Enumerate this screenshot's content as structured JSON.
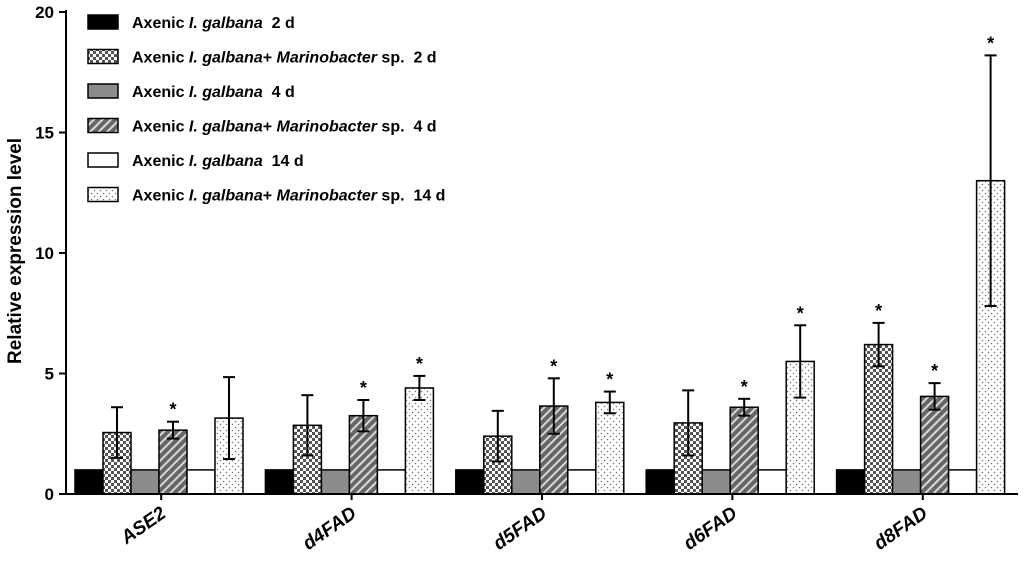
{
  "chart_data": {
    "type": "bar",
    "title": "",
    "xlabel": "",
    "ylabel": "Relative expression level",
    "ylim": [
      0,
      20
    ],
    "yticks": [
      "0",
      "5",
      "10",
      "15",
      "20"
    ],
    "grid": false,
    "legend_position": "top-left",
    "categories": [
      "ASE2",
      "d4FAD",
      "d5FAD",
      "d6FAD",
      "d8FAD"
    ],
    "significance_marker": "*",
    "series": [
      {
        "name": "Axenic I. galbana 2 d",
        "legend_parts": [
          {
            "t": "Axenic ",
            "i": false
          },
          {
            "t": "I. galbana",
            "i": true
          },
          {
            "t": "  2 d",
            "i": false
          }
        ],
        "pattern": "solid-black",
        "values": [
          1,
          1,
          1,
          1,
          1
        ],
        "errors": [
          0,
          0,
          0,
          0,
          0
        ],
        "significant": [
          false,
          false,
          false,
          false,
          false
        ]
      },
      {
        "name": "Axenic I. galbana+ Marinobacter sp. 2 d",
        "legend_parts": [
          {
            "t": "Axenic ",
            "i": false
          },
          {
            "t": "I. galbana",
            "i": true
          },
          {
            "t": "+ ",
            "i": false
          },
          {
            "t": "Marinobacter",
            "i": true
          },
          {
            "t": " sp.  2 d",
            "i": false
          }
        ],
        "pattern": "checker",
        "values": [
          2.55,
          2.85,
          2.4,
          2.95,
          6.2
        ],
        "errors": [
          1.05,
          1.25,
          1.05,
          1.35,
          0.9
        ],
        "significant": [
          false,
          false,
          false,
          false,
          true
        ]
      },
      {
        "name": "Axenic I. galbana 4 d",
        "legend_parts": [
          {
            "t": "Axenic ",
            "i": false
          },
          {
            "t": "I. galbana",
            "i": true
          },
          {
            "t": "  4 d",
            "i": false
          }
        ],
        "pattern": "solid-gray",
        "values": [
          1,
          1,
          1,
          1,
          1
        ],
        "errors": [
          0,
          0,
          0,
          0,
          0
        ],
        "significant": [
          false,
          false,
          false,
          false,
          false
        ]
      },
      {
        "name": "Axenic I. galbana+ Marinobacter sp. 4 d",
        "legend_parts": [
          {
            "t": "Axenic ",
            "i": false
          },
          {
            "t": "I. galbana",
            "i": true
          },
          {
            "t": "+ ",
            "i": false
          },
          {
            "t": "Marinobacter",
            "i": true
          },
          {
            "t": " sp.  4 d",
            "i": false
          }
        ],
        "pattern": "diagonal",
        "values": [
          2.65,
          3.25,
          3.65,
          3.6,
          4.05
        ],
        "errors": [
          0.35,
          0.65,
          1.15,
          0.35,
          0.55
        ],
        "significant": [
          true,
          true,
          true,
          true,
          true
        ]
      },
      {
        "name": "Axenic I. galbana 14 d",
        "legend_parts": [
          {
            "t": "Axenic ",
            "i": false
          },
          {
            "t": "I. galbana",
            "i": true
          },
          {
            "t": "  14 d",
            "i": false
          }
        ],
        "pattern": "solid-white",
        "values": [
          1,
          1,
          1,
          1,
          1
        ],
        "errors": [
          0,
          0,
          0,
          0,
          0
        ],
        "significant": [
          false,
          false,
          false,
          false,
          false
        ]
      },
      {
        "name": "Axenic I. galbana+ Marinobacter sp. 14 d",
        "legend_parts": [
          {
            "t": "Axenic ",
            "i": false
          },
          {
            "t": "I. galbana",
            "i": true
          },
          {
            "t": "+ ",
            "i": false
          },
          {
            "t": "Marinobacter",
            "i": true
          },
          {
            "t": " sp.  14 d",
            "i": false
          }
        ],
        "pattern": "dotted",
        "values": [
          3.15,
          4.4,
          3.8,
          5.5,
          13.0
        ],
        "errors": [
          1.7,
          0.5,
          0.45,
          1.5,
          5.2
        ],
        "significant": [
          false,
          true,
          true,
          true,
          true
        ]
      }
    ]
  }
}
